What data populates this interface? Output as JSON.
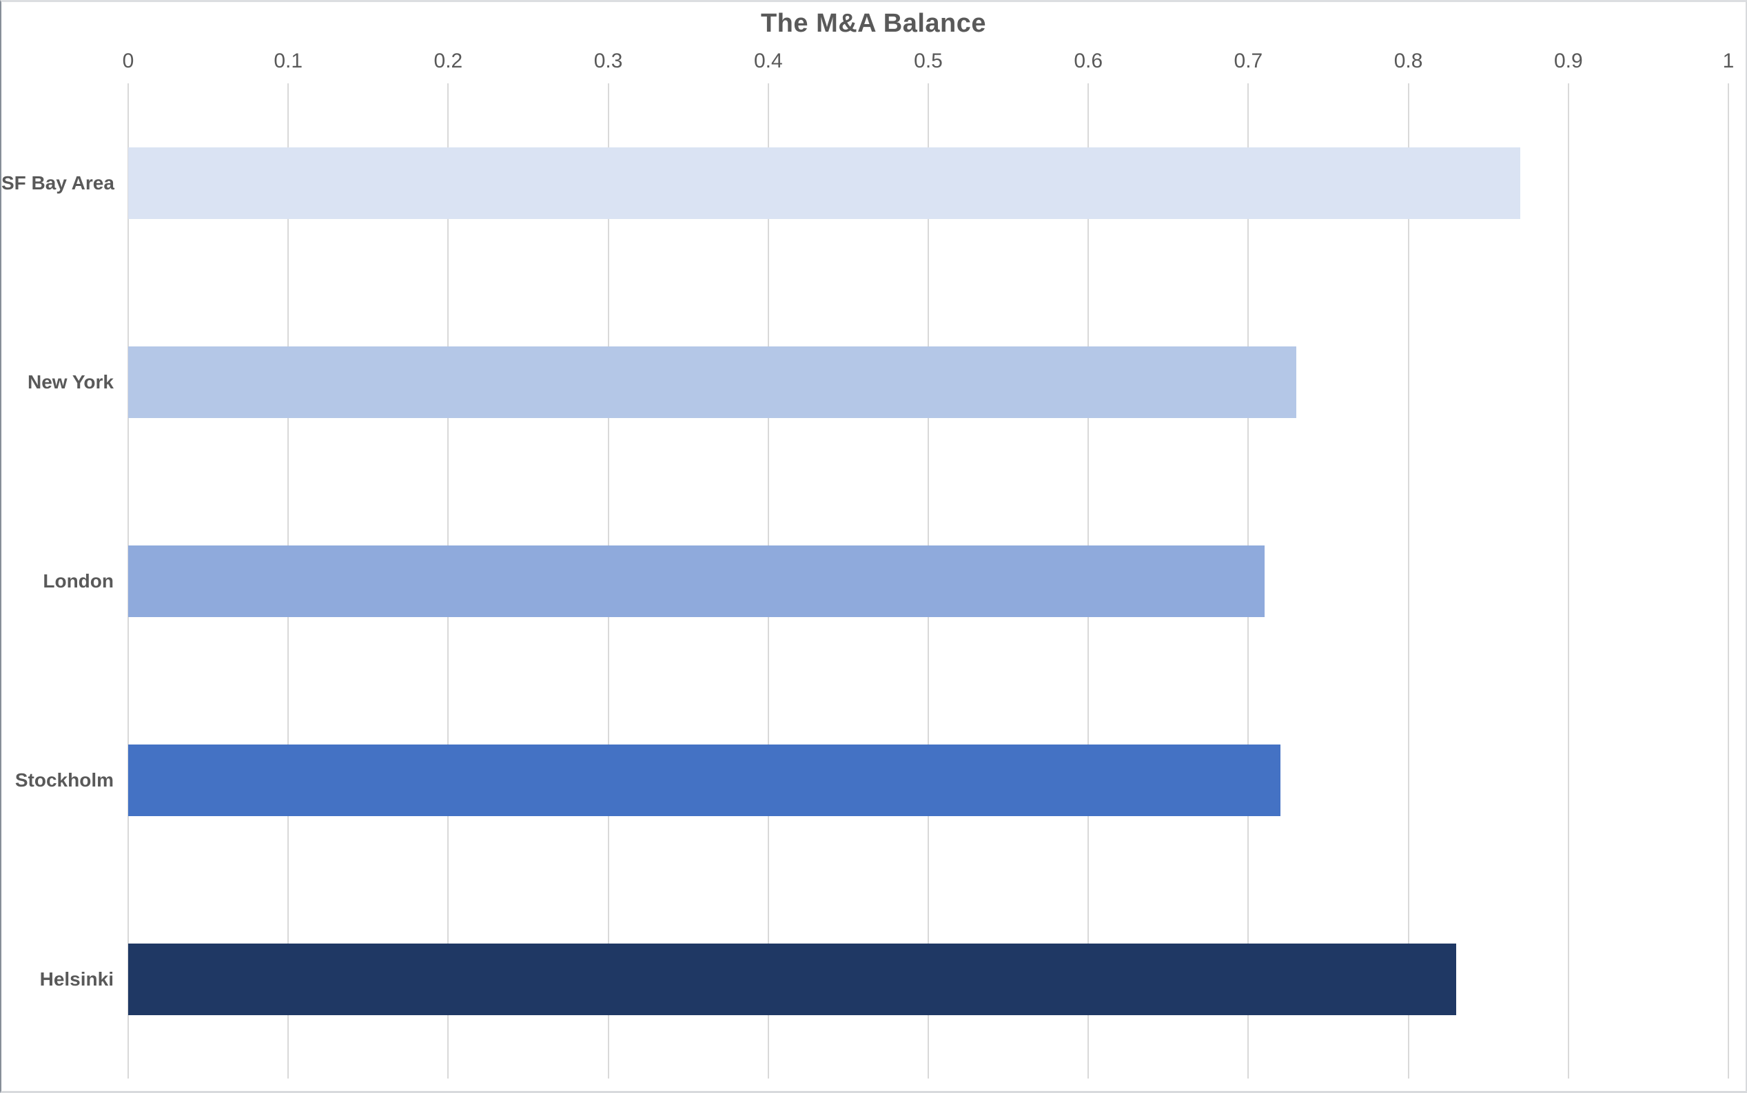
{
  "chart_data": {
    "type": "bar",
    "orientation": "horizontal",
    "title": "The M&A Balance",
    "xlabel": "",
    "ylabel": "",
    "categories": [
      "SF Bay Area",
      "New York",
      "London",
      "Stockholm",
      "Helsinki"
    ],
    "values": [
      0.87,
      0.73,
      0.71,
      0.72,
      0.83
    ],
    "bar_colors": [
      "#dae3f3",
      "#b4c7e7",
      "#8faadc",
      "#4472c4",
      "#1f3864"
    ],
    "xlim": [
      0,
      1
    ],
    "xticks": [
      0,
      0.1,
      0.2,
      0.3,
      0.4,
      0.5,
      0.6,
      0.7,
      0.8,
      0.9,
      1
    ],
    "xtick_labels": [
      "0",
      "0.1",
      "0.2",
      "0.3",
      "0.4",
      "0.5",
      "0.6",
      "0.7",
      "0.8",
      "0.9",
      "1"
    ],
    "grid": true,
    "legend": false,
    "colors": {
      "text": "#595959",
      "gridline": "#d9d9d9",
      "background": "#ffffff"
    }
  }
}
